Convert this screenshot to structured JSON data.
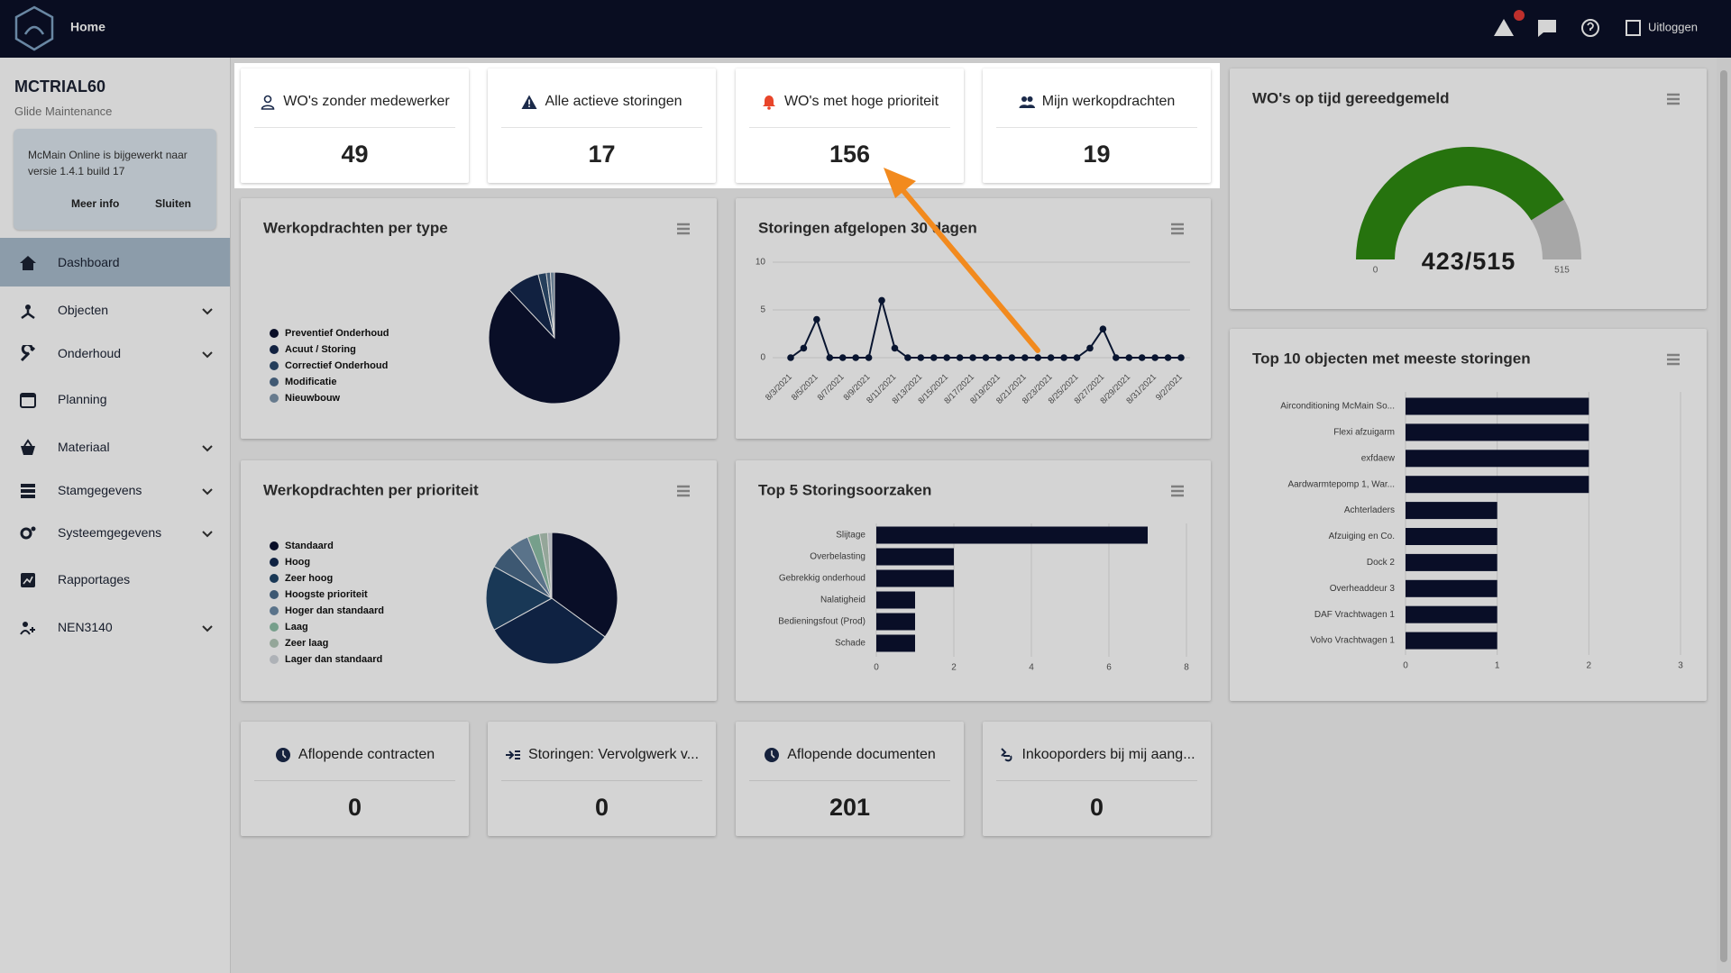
{
  "header": {
    "title": "Home",
    "logout": "Uitloggen"
  },
  "sidebar": {
    "account": "MCTRIAL60",
    "company": "Glide Maintenance",
    "notice": {
      "text": "McMain Online is bijgewerkt naar versie 1.4.1 build 17",
      "more": "Meer info",
      "close": "Sluiten"
    },
    "menu": [
      {
        "label": "Dashboard",
        "active": true
      },
      {
        "label": "Objecten",
        "expandable": true
      },
      {
        "label": "Onderhoud",
        "expandable": true
      },
      {
        "label": "Planning"
      },
      {
        "label": "Materiaal",
        "expandable": true
      },
      {
        "label": "Stamgegevens",
        "expandable": true
      },
      {
        "label": "Systeemgegevens",
        "expandable": true
      },
      {
        "label": "Rapportages"
      },
      {
        "label": "NEN3140",
        "expandable": true
      }
    ]
  },
  "kpis": [
    {
      "label": "WO's zonder medewerker",
      "value": 49
    },
    {
      "label": "Alle actieve storingen",
      "value": 17
    },
    {
      "label": "WO's met hoge prioriteit",
      "value": 156
    },
    {
      "label": "Mijn werkopdrachten",
      "value": 19
    }
  ],
  "bottom_kpis": [
    {
      "label": "Aflopende contracten",
      "value": 0
    },
    {
      "label": "Storingen: Vervolgwerk v...",
      "value": 0
    },
    {
      "label": "Aflopende documenten",
      "value": 201
    },
    {
      "label": "Inkooporders bij mij aang...",
      "value": 0
    }
  ],
  "gauge": {
    "title": "WO's op tijd gereedgemeld",
    "value": 423,
    "label": "423/515",
    "min": 0,
    "max": 515,
    "colors": [
      "#2e8b12",
      "#c9c9c9"
    ]
  },
  "chart_data": [
    {
      "type": "pie",
      "title": "Werkopdrachten per type",
      "categories": [
        "Preventief Onderhoud",
        "Acuut / Storing",
        "Correctief Onderhoud",
        "Modificatie",
        "Nieuwbouw"
      ],
      "values": [
        88,
        8,
        2,
        1,
        1
      ],
      "colors": [
        "#0b1230",
        "#15284d",
        "#2c4b6e",
        "#4e6c8b",
        "#7c94ab"
      ]
    },
    {
      "type": "line",
      "title": "Storingen afgelopen 30 dagen",
      "categories": [
        "8/3/2021",
        null,
        "8/5/2021",
        null,
        "8/7/2021",
        null,
        "8/9/2021",
        null,
        "8/11/2021",
        null,
        "8/13/2021",
        null,
        "8/15/2021",
        null,
        "8/17/2021",
        null,
        "8/19/2021",
        null,
        "8/21/2021",
        null,
        "8/23/2021",
        null,
        "8/25/2021",
        null,
        "8/27/2021",
        null,
        "8/29/2021",
        null,
        "8/31/2021",
        null,
        "9/2/2021"
      ],
      "values": [
        0,
        1,
        4,
        0,
        0,
        0,
        0,
        6,
        1,
        0,
        0,
        0,
        0,
        0,
        0,
        0,
        0,
        0,
        0,
        0,
        0,
        0,
        0,
        1,
        3,
        0,
        0,
        0,
        0,
        0,
        0
      ],
      "color": "#0b1a3a",
      "ylim": [
        0,
        10
      ],
      "yticks": [
        0,
        5,
        10
      ],
      "grid": true
    },
    {
      "type": "pie",
      "title": "Werkopdrachten per prioriteit",
      "categories": [
        "Standaard",
        "Hoog",
        "Zeer hoog",
        "Hoogste prioriteit",
        "Hoger dan standaard",
        "Laag",
        "Zeer laag",
        "Lager dan standaard"
      ],
      "values": [
        35,
        32,
        16,
        6,
        5,
        3,
        2,
        1
      ],
      "colors": [
        "#0b1230",
        "#132a50",
        "#1f4468",
        "#4a6a8a",
        "#6d8ba6",
        "#8fc0a8",
        "#b3c8b9",
        "#d2d7dc"
      ]
    },
    {
      "type": "bar",
      "title": "Top 5 Storingsoorzaken",
      "categories": [
        "Slijtage",
        "Overbelasting",
        "Gebrekkig onderhoud",
        "Nalatigheid",
        "Bedieningsfout (Prod)",
        "Schade"
      ],
      "values": [
        7,
        2,
        2,
        1,
        1,
        1
      ],
      "color": "#0b1230",
      "xlim": [
        0,
        8
      ],
      "xticks": [
        0,
        2,
        4,
        6,
        8
      ],
      "grid": true
    },
    {
      "type": "bar",
      "title": "Top 10 objecten met meeste storingen",
      "categories": [
        "Airconditioning McMain So...",
        "Flexi afzuigarm",
        "exfdaew",
        "Aardwarmtepomp 1, War...",
        "Achterladers",
        "Afzuiging en Co.",
        "Dock 2",
        "Overheaddeur 3",
        "DAF Vrachtwagen 1",
        "Volvo Vrachtwagen 1"
      ],
      "values": [
        2,
        2,
        2,
        2,
        1,
        1,
        1,
        1,
        1,
        1
      ],
      "color": "#0b1230",
      "xlim": [
        0,
        3
      ],
      "xticks": [
        0,
        1,
        2,
        3
      ],
      "grid": true
    }
  ]
}
